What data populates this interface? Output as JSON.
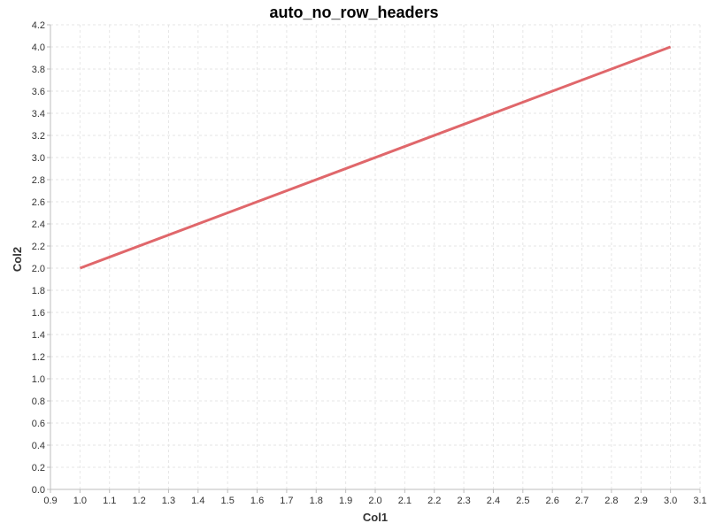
{
  "chart_data": {
    "type": "line",
    "title": "auto_no_row_headers",
    "xlabel": "Col1",
    "ylabel": "Col2",
    "xlim": [
      0.9,
      3.1
    ],
    "ylim": [
      0.0,
      4.2
    ],
    "x_ticks": [
      "0.9",
      "1.0",
      "1.1",
      "1.2",
      "1.3",
      "1.4",
      "1.5",
      "1.6",
      "1.7",
      "1.8",
      "1.9",
      "2.0",
      "2.1",
      "2.2",
      "2.3",
      "2.4",
      "2.5",
      "2.6",
      "2.7",
      "2.8",
      "2.9",
      "3.0",
      "3.1"
    ],
    "y_ticks": [
      "0.0",
      "0.2",
      "0.4",
      "0.6",
      "0.8",
      "1.0",
      "1.2",
      "1.4",
      "1.6",
      "1.8",
      "2.0",
      "2.2",
      "2.4",
      "2.6",
      "2.8",
      "3.0",
      "3.2",
      "3.4",
      "3.6",
      "3.8",
      "4.0",
      "4.2"
    ],
    "grid": true,
    "series": [
      {
        "x": [
          1.0,
          3.0
        ],
        "y": [
          2.0,
          4.0
        ],
        "color": "#e0676b"
      }
    ]
  }
}
